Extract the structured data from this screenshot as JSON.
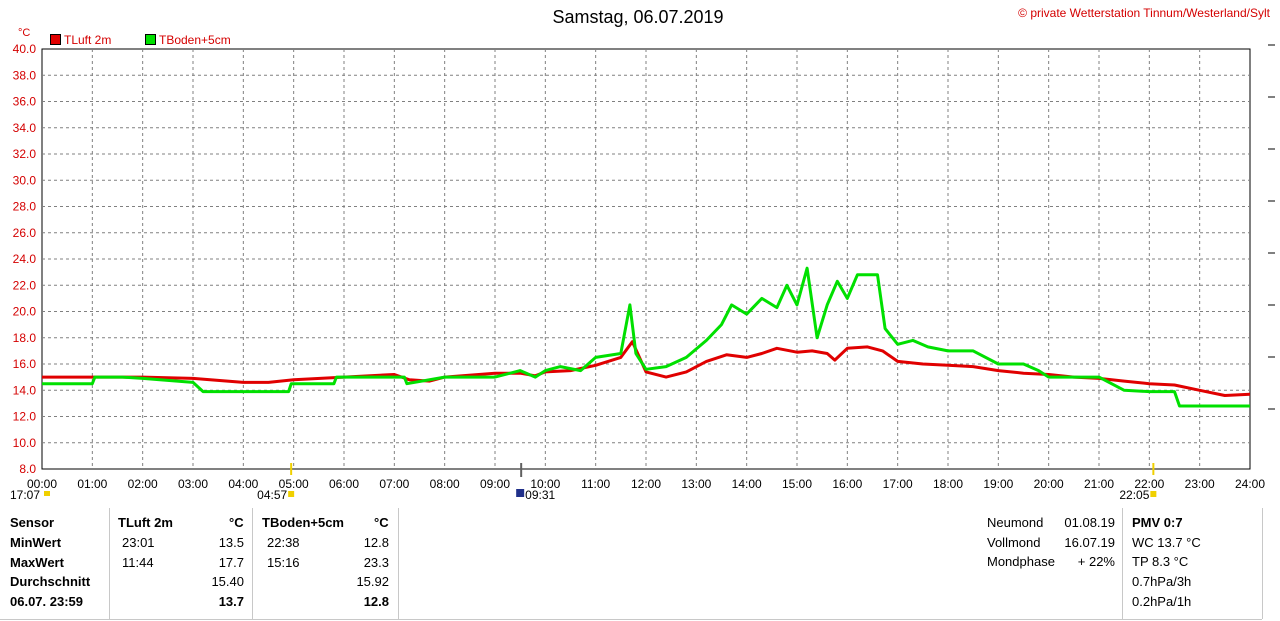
{
  "header": {
    "title": "Samstag, 06.07.2019",
    "credit": "© private Wetterstation Tinnum/Westerland/Sylt",
    "unit": "°C"
  },
  "chart_data": {
    "type": "line",
    "title": "Samstag, 06.07.2019",
    "ylabel": "°C",
    "ylim": [
      8.0,
      40.0
    ],
    "xlim": [
      0,
      24
    ],
    "grid": true,
    "legend": "top-left",
    "y_ticks": [
      "8.0",
      "10.0",
      "12.0",
      "14.0",
      "16.0",
      "18.0",
      "20.0",
      "22.0",
      "24.0",
      "26.0",
      "28.0",
      "30.0",
      "32.0",
      "34.0",
      "36.0",
      "38.0",
      "40.0"
    ],
    "x_ticks": [
      "00:00",
      "01:00",
      "02:00",
      "03:00",
      "04:00",
      "05:00",
      "06:00",
      "07:00",
      "08:00",
      "09:00",
      "10:00",
      "11:00",
      "12:00",
      "13:00",
      "14:00",
      "15:00",
      "16:00",
      "17:00",
      "18:00",
      "19:00",
      "20:00",
      "21:00",
      "22:00",
      "23:00",
      "24:00"
    ],
    "series": [
      {
        "name": "TLuft 2m",
        "color": "#e00000",
        "points": [
          [
            0,
            15.0
          ],
          [
            1,
            15.0
          ],
          [
            2,
            15.0
          ],
          [
            3,
            14.9
          ],
          [
            4,
            14.6
          ],
          [
            4.5,
            14.6
          ],
          [
            5,
            14.8
          ],
          [
            6,
            15.0
          ],
          [
            7,
            15.2
          ],
          [
            7.3,
            14.8
          ],
          [
            7.7,
            14.7
          ],
          [
            8,
            15.0
          ],
          [
            9,
            15.3
          ],
          [
            9.5,
            15.3
          ],
          [
            9.8,
            15.1
          ],
          [
            10,
            15.4
          ],
          [
            10.5,
            15.5
          ],
          [
            11,
            15.9
          ],
          [
            11.5,
            16.5
          ],
          [
            11.73,
            17.7
          ],
          [
            12,
            15.4
          ],
          [
            12.4,
            15.0
          ],
          [
            12.8,
            15.4
          ],
          [
            13.2,
            16.2
          ],
          [
            13.6,
            16.7
          ],
          [
            14,
            16.5
          ],
          [
            14.3,
            16.8
          ],
          [
            14.6,
            17.2
          ],
          [
            15,
            16.9
          ],
          [
            15.3,
            17.0
          ],
          [
            15.6,
            16.8
          ],
          [
            15.75,
            16.3
          ],
          [
            16,
            17.2
          ],
          [
            16.4,
            17.3
          ],
          [
            16.7,
            17.0
          ],
          [
            17,
            16.2
          ],
          [
            17.5,
            16.0
          ],
          [
            18,
            15.9
          ],
          [
            18.5,
            15.8
          ],
          [
            19,
            15.5
          ],
          [
            19.5,
            15.3
          ],
          [
            20,
            15.2
          ],
          [
            20.5,
            15.0
          ],
          [
            21,
            14.9
          ],
          [
            21.5,
            14.7
          ],
          [
            22,
            14.5
          ],
          [
            22.5,
            14.4
          ],
          [
            23,
            14.0
          ],
          [
            23.5,
            13.6
          ],
          [
            24,
            13.7
          ]
        ]
      },
      {
        "name": "TBoden+5cm",
        "color": "#00e000",
        "points": [
          [
            0,
            14.5
          ],
          [
            1,
            14.5
          ],
          [
            1.05,
            15.0
          ],
          [
            1.6,
            15.0
          ],
          [
            2,
            14.9
          ],
          [
            3,
            14.6
          ],
          [
            3.2,
            13.9
          ],
          [
            4,
            13.9
          ],
          [
            4.9,
            13.9
          ],
          [
            4.95,
            14.5
          ],
          [
            5.8,
            14.5
          ],
          [
            5.85,
            15.0
          ],
          [
            7.2,
            15.0
          ],
          [
            7.25,
            14.5
          ],
          [
            8,
            15.0
          ],
          [
            9,
            15.0
          ],
          [
            9.5,
            15.5
          ],
          [
            9.8,
            15.0
          ],
          [
            10,
            15.5
          ],
          [
            10.3,
            15.8
          ],
          [
            10.7,
            15.5
          ],
          [
            11,
            16.5
          ],
          [
            11.5,
            16.8
          ],
          [
            11.68,
            20.5
          ],
          [
            11.8,
            16.8
          ],
          [
            12,
            15.6
          ],
          [
            12.4,
            15.8
          ],
          [
            12.8,
            16.5
          ],
          [
            13.2,
            17.8
          ],
          [
            13.5,
            19.0
          ],
          [
            13.7,
            20.5
          ],
          [
            14,
            19.8
          ],
          [
            14.3,
            21.0
          ],
          [
            14.6,
            20.3
          ],
          [
            14.8,
            22.0
          ],
          [
            15,
            20.5
          ],
          [
            15.2,
            23.3
          ],
          [
            15.4,
            18.0
          ],
          [
            15.6,
            20.5
          ],
          [
            15.8,
            22.3
          ],
          [
            16,
            21.0
          ],
          [
            16.2,
            22.8
          ],
          [
            16.6,
            22.8
          ],
          [
            16.75,
            18.7
          ],
          [
            17,
            17.5
          ],
          [
            17.3,
            17.8
          ],
          [
            17.6,
            17.3
          ],
          [
            18,
            17.0
          ],
          [
            18.5,
            17.0
          ],
          [
            19,
            16.0
          ],
          [
            19.5,
            16.0
          ],
          [
            19.8,
            15.5
          ],
          [
            20,
            15.0
          ],
          [
            20.5,
            15.0
          ],
          [
            21,
            15.0
          ],
          [
            21.5,
            14.0
          ],
          [
            22,
            13.9
          ],
          [
            22.5,
            13.9
          ],
          [
            22.6,
            12.8
          ],
          [
            24,
            12.8
          ]
        ]
      }
    ],
    "annotations": [
      {
        "time": "17:07",
        "x": 0.0
      },
      {
        "time": "04:57",
        "x": 4.95
      },
      {
        "time": "09:31",
        "x": 9.52
      },
      {
        "time": "22:05",
        "x": 22.08
      }
    ]
  },
  "stats": {
    "headers": [
      "Sensor",
      "TLuft 2m",
      "°C",
      "TBoden+5cm",
      "°C"
    ],
    "rows": [
      {
        "label": "MinWert",
        "t1": "23:01",
        "v1": "13.5",
        "t2": "22:38",
        "v2": "12.8"
      },
      {
        "label": "MaxWert",
        "t1": "11:44",
        "v1": "17.7",
        "t2": "15:16",
        "v2": "23.3"
      },
      {
        "label": "Durchschnitt",
        "t1": "",
        "v1": "15.40",
        "t2": "",
        "v2": "15.92"
      },
      {
        "label": "06.07. 23:59",
        "t1": "",
        "v1": "13.7",
        "t2": "",
        "v2": "12.8"
      }
    ]
  },
  "moon": [
    {
      "label": "Neumond",
      "value": "01.08.19"
    },
    {
      "label": "Vollmond",
      "value": "16.07.19"
    },
    {
      "label": "Mondphase",
      "value": "+ 22%"
    }
  ],
  "extra": [
    "PMV 0:7",
    "WC 13.7 °C",
    "TP 8.3 °C",
    "0.7hPa/3h",
    "0.2hPa/1h"
  ]
}
